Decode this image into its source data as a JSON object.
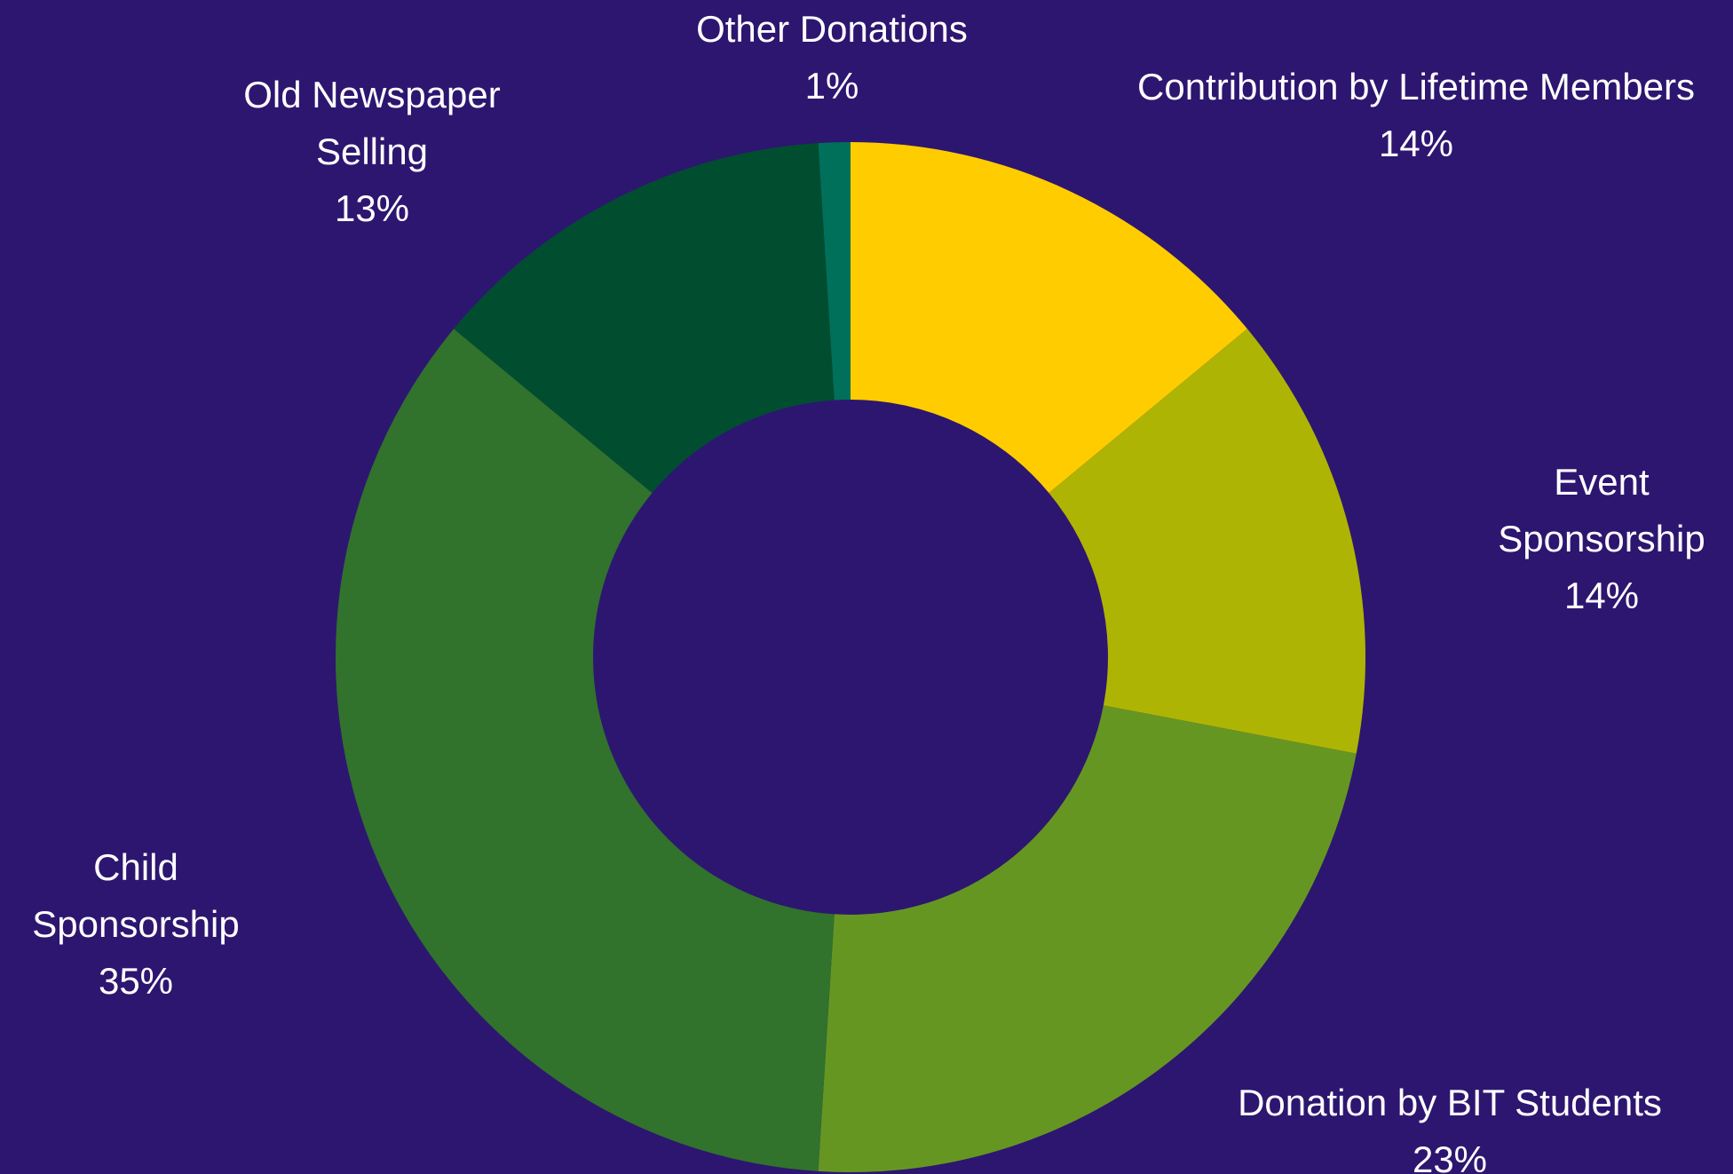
{
  "chart_data": {
    "type": "donut",
    "title": "",
    "background": "#2d1670",
    "label_color": "#ffffff",
    "slices": [
      {
        "label_lines": [
          "Contribution by Lifetime  Members"
        ],
        "value": 14,
        "value_label": "14%",
        "color": "#ffcc00"
      },
      {
        "label_lines": [
          "Event",
          "Sponsorship"
        ],
        "value": 14,
        "value_label": "14%",
        "color": "#aeb404"
      },
      {
        "label_lines": [
          "Donation by BIT Students"
        ],
        "value": 23,
        "value_label": "23%",
        "color": "#669622"
      },
      {
        "label_lines": [
          "Child",
          "Sponsorship"
        ],
        "value": 35,
        "value_label": "35%",
        "color": "#31722d"
      },
      {
        "label_lines": [
          "Old Newspaper",
          "Selling"
        ],
        "value": 13,
        "value_label": "13%",
        "color": "#004e2f"
      },
      {
        "label_lines": [
          "Other Donations"
        ],
        "value": 1,
        "value_label": "1%",
        "color": "#00705a"
      }
    ]
  }
}
